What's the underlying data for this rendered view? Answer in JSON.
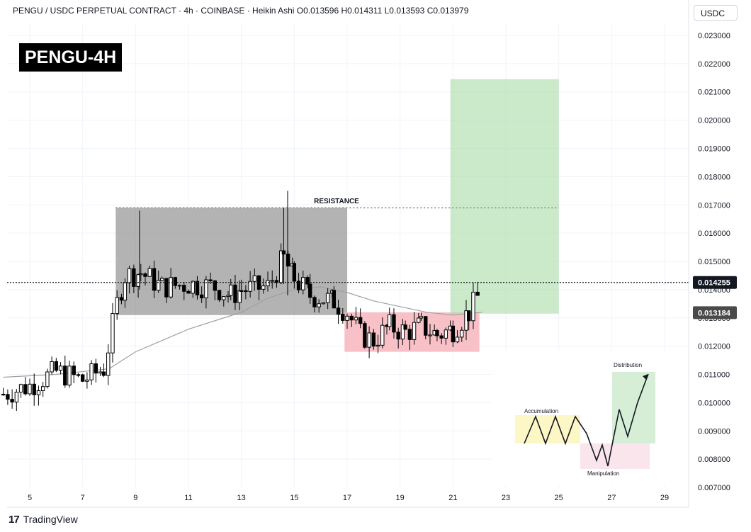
{
  "header": {
    "text": "PENGU / USDC PERPETUAL CONTRACT · 4h · COINBASE · Heikin Ashi   O0.013596   H0.014311   L0.013593   C0.013979"
  },
  "currency": "USDC",
  "title": "PENGU-4H",
  "footer": {
    "logo_mark": "17",
    "brand": "TradingView"
  },
  "colors": {
    "up": "#ffffff",
    "down": "#000000",
    "grey_zone": "#9a9a9a",
    "red_zone": "#f7b6bd",
    "green_zone": "#a8dca6",
    "ma_line": "#a0a0a0",
    "price_badge": "#131722"
  },
  "chart_data": {
    "type": "candlestick",
    "style": "Heikin Ashi",
    "y_axis": {
      "ticks": [
        "0.023000",
        "0.022000",
        "0.021000",
        "0.020000",
        "0.019000",
        "0.018000",
        "0.017000",
        "0.016000",
        "0.015000",
        "0.014000",
        "0.013000",
        "0.012000",
        "0.011000",
        "0.010000",
        "0.009000",
        "0.008000",
        "0.007000"
      ],
      "ylim": [
        0.0067,
        0.0231
      ]
    },
    "x_axis": {
      "ticks": [
        "5",
        "7",
        "9",
        "11",
        "13",
        "15",
        "17",
        "19",
        "21",
        "23",
        "25",
        "27",
        "29"
      ]
    },
    "current_price": "0.014255",
    "second_price": "0.013184",
    "resistance": {
      "label": "RESISTANCE",
      "value": 0.0169
    },
    "zones": [
      {
        "name": "range",
        "x_from": 8.25,
        "x_to": 17.0,
        "y_from": 0.0131,
        "y_to": 0.0169
      },
      {
        "name": "manipulation",
        "x_from": 16.9,
        "x_to": 22.0,
        "y_from": 0.0118,
        "y_to": 0.0132
      },
      {
        "name": "target",
        "x_from": 20.9,
        "x_to": 25.0,
        "y_from": 0.01315,
        "y_to": 0.02145
      }
    ],
    "candles_anchor_prices": [
      [
        4.0,
        0.0103
      ],
      [
        5.0,
        0.0106
      ],
      [
        6.0,
        0.0111
      ],
      [
        7.0,
        0.0108
      ],
      [
        7.8,
        0.0112
      ],
      [
        8.3,
        0.0135
      ],
      [
        8.6,
        0.0145
      ],
      [
        9.2,
        0.0146
      ],
      [
        10.0,
        0.0141
      ],
      [
        11.0,
        0.0142
      ],
      [
        12.0,
        0.0141
      ],
      [
        12.6,
        0.0138
      ],
      [
        13.0,
        0.014
      ],
      [
        14.0,
        0.0141
      ],
      [
        14.6,
        0.0151
      ],
      [
        15.0,
        0.0144
      ],
      [
        15.6,
        0.0138
      ],
      [
        16.5,
        0.0136
      ],
      [
        17.0,
        0.0132
      ],
      [
        17.5,
        0.0124
      ],
      [
        18.0,
        0.0122
      ],
      [
        18.6,
        0.0127
      ],
      [
        19.2,
        0.0125
      ],
      [
        19.8,
        0.0127
      ],
      [
        20.4,
        0.0124
      ],
      [
        21.0,
        0.0126
      ],
      [
        21.6,
        0.0132
      ],
      [
        22.1,
        0.014
      ]
    ],
    "moving_average": [
      [
        4.0,
        0.0109
      ],
      [
        6.0,
        0.011
      ],
      [
        8.0,
        0.0112
      ],
      [
        9.0,
        0.0118
      ],
      [
        10.0,
        0.0122
      ],
      [
        11.0,
        0.0126
      ],
      [
        12.0,
        0.0129
      ],
      [
        13.0,
        0.0132
      ],
      [
        14.0,
        0.0137
      ],
      [
        15.0,
        0.014
      ],
      [
        16.0,
        0.0141
      ],
      [
        17.0,
        0.0139
      ],
      [
        18.0,
        0.0136
      ],
      [
        19.0,
        0.0134
      ],
      [
        20.0,
        0.0132
      ],
      [
        21.0,
        0.0131
      ],
      [
        22.1,
        0.0132
      ]
    ],
    "inset": {
      "labels": {
        "accumulation": "Accumulation",
        "manipulation": "Manipulation",
        "distribution": "Distribution"
      }
    }
  }
}
